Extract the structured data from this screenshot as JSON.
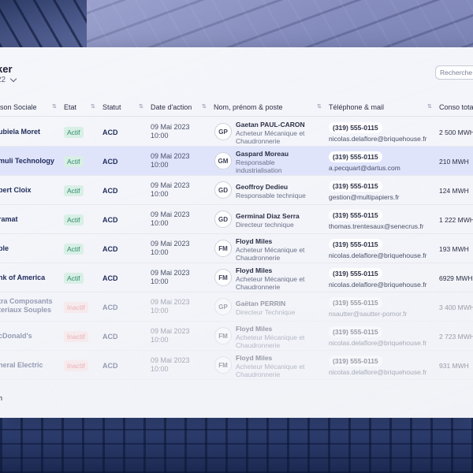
{
  "header": {
    "title": "ker",
    "subtitle": "22"
  },
  "search": {
    "placeholder": "Recherche"
  },
  "columns": {
    "company": "ison Sociale",
    "etat": "Etat",
    "statut": "Statut",
    "date": "Date d'action",
    "person": "Nom, prénom & poste",
    "contact": "Téléphone & mail",
    "conso": "Conso tota"
  },
  "rows": [
    {
      "company": "ubiela Moret",
      "etat": "Actif",
      "statut": "ACD",
      "date": "09 Mai 2023",
      "time": "10:00",
      "initials": "GP",
      "name": "Gaetan PAUL-CARON",
      "position": "Acheteur Mécanique et Chaudronnerie",
      "phone": "(319) 555-0115",
      "email": "nicolas.delaflore@briquehouse.fr",
      "conso": "2 500 MWH"
    },
    {
      "company": "muli Technology",
      "etat": "Actif",
      "statut": "ACD",
      "date": "09 Mai 2023",
      "time": "10:00",
      "initials": "GM",
      "name": "Gaspard Moreau",
      "position": "Responsable industrialisation",
      "phone": "(319) 555-0115",
      "email": "a.pecquart@dartus.com",
      "conso": "210 MWH"
    },
    {
      "company": "bert Cloix",
      "etat": "Actif",
      "statut": "ACD",
      "date": "09 Mai 2023",
      "time": "10:00",
      "initials": "GD",
      "name": "Geoffroy Dedieu",
      "position": "Responsable technique",
      "phone": "(319) 555-0115",
      "email": "gestion@multipapiers.fr",
      "conso": "124 MWH"
    },
    {
      "company": "ramat",
      "etat": "Actif",
      "statut": "ACD",
      "date": "09 Mai 2023",
      "time": "10:00",
      "initials": "GD",
      "name": "Germinal Diaz Serra",
      "position": "Directeur technique",
      "phone": "(319) 555-0115",
      "email": "thomas.trentesaux@senecrus.fr",
      "conso": "1 222 MWH"
    },
    {
      "company": "ple",
      "etat": "Actif",
      "statut": "ACD",
      "date": "09 Mai 2023",
      "time": "10:00",
      "initials": "FM",
      "name": "Floyd Miles",
      "position": "Acheteur Mécanique et Chaudronnerie",
      "phone": "(319) 555-0115",
      "email": "nicolas.delaflore@briquehouse.fr",
      "conso": "193 MWH"
    },
    {
      "company": "nk of America",
      "etat": "Actif",
      "statut": "ACD",
      "date": "09 Mai 2023",
      "time": "10:00",
      "initials": "FM",
      "name": "Floyd Miles",
      "position": "Acheteur Mécanique et Chaudronnerie",
      "phone": "(319) 555-0115",
      "email": "nicolas.delaflore@briquehouse.fr",
      "conso": "6929 MWH"
    },
    {
      "company": "tra Composants teriaux Souples",
      "etat": "Inactif",
      "statut": "ACD",
      "date": "09 Mai 2023",
      "time": "10:00",
      "initials": "GP",
      "name": "Gaëtan PERRIN",
      "position": "Directeur Technique",
      "phone": "(319) 555-0115",
      "email": "nsautter@sautter-pomor.fr",
      "conso": "3 400 MWH"
    },
    {
      "company": "cDonald's",
      "etat": "Inactif",
      "statut": "ACD",
      "date": "09 Mai 2023",
      "time": "10:00",
      "initials": "FM",
      "name": "Floyd Miles",
      "position": "Acheteur Mécanique et Chaudronnerie",
      "phone": "(319) 555-0115",
      "email": "nicolas.delaflore@briquehouse.fr",
      "conso": "2 723 MWH"
    },
    {
      "company": "neral Electric",
      "etat": "Inactif",
      "statut": "ACD",
      "date": "09 Mai 2023",
      "time": "10:00",
      "initials": "FM",
      "name": "Floyd Miles",
      "position": "Acheteur Mécanique et Chaudronnerie",
      "phone": "(319) 555-0115",
      "email": "nicolas.delaflore@briquehouse.fr",
      "conso": "931 MWH"
    }
  ],
  "selected_row": 1,
  "footer": {
    "text": "h"
  },
  "colors": {
    "selected_row": "#dfe4fb",
    "active": "#2f8a68",
    "inactive": "#e0636a",
    "navy": "#1e2a5a"
  }
}
